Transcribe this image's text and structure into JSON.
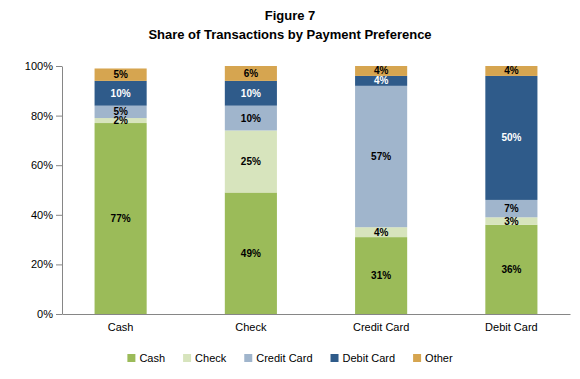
{
  "chart_data": {
    "type": "bar",
    "title": "Figure 7",
    "subtitle": "Share of Transactions by Payment Preference",
    "stacked": true,
    "data_labels": true,
    "legend": "bottom",
    "grid": false,
    "categories": [
      "Cash",
      "Check",
      "Credit Card",
      "Debit Card"
    ],
    "ylim": [
      0,
      100
    ],
    "yticks": [
      {
        "value": 0,
        "label": "0%"
      },
      {
        "value": 20,
        "label": "20%"
      },
      {
        "value": 40,
        "label": "40%"
      },
      {
        "value": 60,
        "label": "60%"
      },
      {
        "value": 80,
        "label": "80%"
      },
      {
        "value": 100,
        "label": "100%"
      }
    ],
    "series": [
      {
        "name": "Cash",
        "color": "#9bbb59",
        "values": [
          77,
          49,
          31,
          36
        ],
        "value_labels": [
          "77%",
          "49%",
          "31%",
          "36%"
        ]
      },
      {
        "name": "Check",
        "color": "#d7e4bd",
        "values": [
          2,
          25,
          4,
          3
        ],
        "value_labels": [
          "2%",
          "25%",
          "4%",
          "3%"
        ]
      },
      {
        "name": "Credit Card",
        "color": "#a0b5cc",
        "values": [
          5,
          10,
          57,
          7
        ],
        "value_labels": [
          "5%",
          "10%",
          "57%",
          "7%"
        ]
      },
      {
        "name": "Debit Card",
        "color": "#2f5b8a",
        "values": [
          10,
          10,
          4,
          50
        ],
        "value_labels": [
          "10%",
          "10%",
          "4%",
          "50%"
        ]
      },
      {
        "name": "Other",
        "color": "#d6a550",
        "values": [
          5,
          6,
          4,
          4
        ],
        "value_labels": [
          "5%",
          "6%",
          "4%",
          "4%"
        ]
      }
    ]
  }
}
